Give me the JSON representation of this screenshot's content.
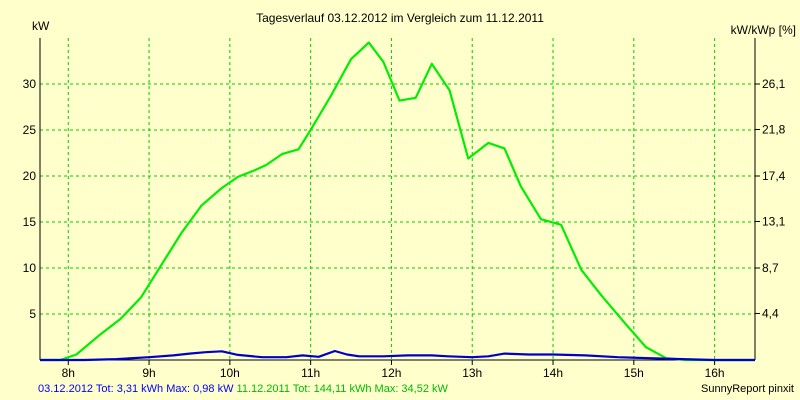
{
  "chart_data": {
    "type": "line",
    "title": "Tagesverlauf 03.12.2012 im Vergleich zum 11.12.2011",
    "ylabel_left": "kW",
    "ylabel_right": "kW/kWp [%]",
    "xlim": [
      7.65,
      16.5
    ],
    "ylim": [
      0,
      35
    ],
    "x_ticks": [
      8,
      9,
      10,
      11,
      12,
      13,
      14,
      15,
      16
    ],
    "x_tick_labels": [
      "8h",
      "9h",
      "10h",
      "11h",
      "12h",
      "13h",
      "14h",
      "15h",
      "16h"
    ],
    "y_ticks_left": [
      5,
      10,
      15,
      20,
      25,
      30
    ],
    "y_tick_labels_left": [
      "5",
      "10",
      "15",
      "20",
      "25",
      "30"
    ],
    "y_ticks_right_value": [
      4.4,
      8.7,
      13.1,
      17.4,
      21.8,
      26.1
    ],
    "y_tick_labels_right": [
      "4,4",
      "8,7",
      "13,1",
      "17,4",
      "21,8",
      "26,1"
    ],
    "grid": true,
    "series": [
      {
        "name": "11.12.2011",
        "color": "#00ee00",
        "x": [
          7.65,
          7.9,
          8.1,
          8.4,
          8.65,
          8.9,
          9.15,
          9.4,
          9.65,
          9.9,
          10.1,
          10.3,
          10.45,
          10.65,
          10.85,
          11.0,
          11.25,
          11.5,
          11.72,
          11.9,
          12.1,
          12.3,
          12.5,
          12.72,
          12.95,
          13.2,
          13.4,
          13.6,
          13.85,
          14.1,
          14.35,
          14.6,
          14.9,
          15.15,
          15.4,
          15.65,
          15.9,
          16.1,
          16.5
        ],
        "y": [
          0,
          0,
          0.6,
          2.8,
          4.5,
          6.8,
          10.3,
          13.8,
          16.8,
          18.7,
          19.9,
          20.6,
          21.2,
          22.4,
          22.9,
          25.0,
          28.7,
          32.7,
          34.5,
          32.4,
          28.2,
          28.5,
          32.2,
          29.3,
          21.9,
          23.6,
          23.0,
          18.9,
          15.3,
          14.7,
          9.8,
          7.0,
          3.9,
          1.4,
          0.2,
          0,
          0,
          0,
          0
        ]
      },
      {
        "name": "03.12.2012",
        "color": "#0000cc",
        "x": [
          7.65,
          8.2,
          8.6,
          9.0,
          9.3,
          9.5,
          9.7,
          9.9,
          10.1,
          10.4,
          10.7,
          10.9,
          11.1,
          11.3,
          11.45,
          11.6,
          11.9,
          12.2,
          12.5,
          12.7,
          13.0,
          13.2,
          13.4,
          13.7,
          14.0,
          14.4,
          14.8,
          15.2,
          15.6,
          16.0,
          16.5
        ],
        "y": [
          0,
          0,
          0.1,
          0.3,
          0.5,
          0.7,
          0.85,
          0.95,
          0.55,
          0.3,
          0.3,
          0.5,
          0.35,
          0.98,
          0.6,
          0.4,
          0.4,
          0.5,
          0.5,
          0.4,
          0.3,
          0.4,
          0.7,
          0.6,
          0.6,
          0.5,
          0.3,
          0.2,
          0.1,
          0,
          0
        ]
      }
    ]
  },
  "footer": {
    "blue_text": "03.12.2012 Tot: 3,31 kWh Max: 0,98 kW",
    "green_text": "11.12.2011 Tot: 144,11 kWh Max: 34,52 kW",
    "credit": "SunnyReport pinxit"
  },
  "colors": {
    "background": "#ffffcc",
    "grid": "#00cc00",
    "axis": "#000000"
  }
}
